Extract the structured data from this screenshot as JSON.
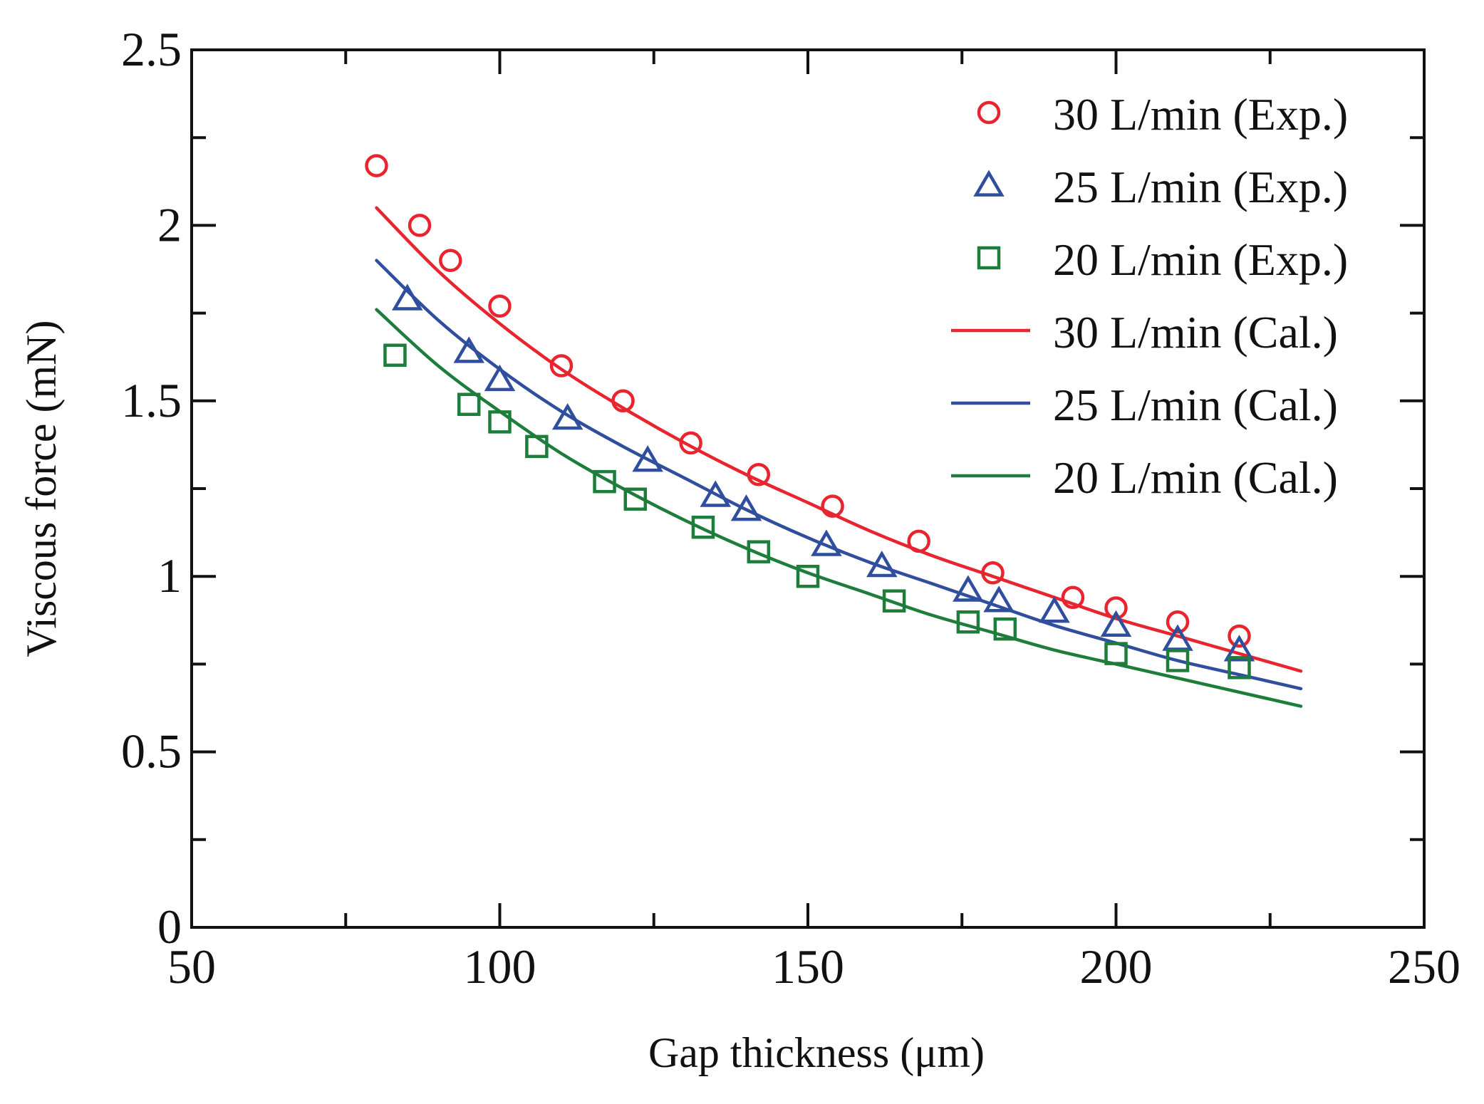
{
  "colors": {
    "red": "#e8252f",
    "blue": "#2f4e9e",
    "green": "#1e7d3a",
    "axis": "#111111",
    "background": "#ffffff"
  },
  "chart_data": {
    "type": "scatter",
    "title": "",
    "xlabel": "Gap thickness (μm)",
    "ylabel": "Viscous force (mN)",
    "xlim": [
      50,
      250
    ],
    "ylim": [
      0,
      2.5
    ],
    "x_ticks": [
      50,
      100,
      150,
      200,
      250
    ],
    "x_tick_labels": [
      "50",
      "100",
      "150",
      "200",
      "250"
    ],
    "x_minor_step": 25,
    "y_ticks": [
      0,
      0.5,
      1,
      1.5,
      2,
      2.5
    ],
    "y_tick_labels": [
      "0",
      "0.5",
      "1",
      "1.5",
      "2",
      "2.5"
    ],
    "y_minor_step": 0.25,
    "grid": false,
    "legend_position": "top-right",
    "series": [
      {
        "name": "30 L/min (Exp.)",
        "kind": "marker",
        "marker": "circle",
        "color": "#e8252f",
        "x": [
          80,
          87,
          92,
          100,
          110,
          120,
          131,
          142,
          154,
          168,
          180,
          193,
          200,
          210,
          220
        ],
        "y": [
          2.17,
          2.0,
          1.9,
          1.77,
          1.6,
          1.5,
          1.38,
          1.29,
          1.2,
          1.1,
          1.01,
          0.94,
          0.91,
          0.87,
          0.83
        ]
      },
      {
        "name": "25 L/min (Exp.)",
        "kind": "marker",
        "marker": "triangle",
        "color": "#2f4e9e",
        "x": [
          85,
          95,
          100,
          111,
          124,
          135,
          140,
          153,
          162,
          176,
          181,
          190,
          200,
          210,
          220
        ],
        "y": [
          1.79,
          1.64,
          1.56,
          1.45,
          1.33,
          1.23,
          1.19,
          1.09,
          1.03,
          0.96,
          0.93,
          0.9,
          0.86,
          0.82,
          0.79
        ]
      },
      {
        "name": "20 L/min (Exp.)",
        "kind": "marker",
        "marker": "square",
        "color": "#1e7d3a",
        "x": [
          83,
          95,
          100,
          106,
          117,
          122,
          133,
          142,
          150,
          164,
          176,
          182,
          200,
          210,
          220
        ],
        "y": [
          1.63,
          1.49,
          1.44,
          1.37,
          1.27,
          1.22,
          1.14,
          1.07,
          1.0,
          0.93,
          0.87,
          0.85,
          0.78,
          0.76,
          0.74
        ]
      },
      {
        "name": "30 L/min (Cal.)",
        "kind": "line",
        "color": "#e8252f",
        "x": [
          80,
          90,
          100,
          110,
          120,
          130,
          140,
          150,
          160,
          170,
          180,
          190,
          200,
          210,
          220,
          230
        ],
        "y": [
          2.05,
          1.87,
          1.72,
          1.59,
          1.48,
          1.38,
          1.29,
          1.21,
          1.13,
          1.06,
          1.0,
          0.94,
          0.88,
          0.83,
          0.78,
          0.73
        ]
      },
      {
        "name": "25 L/min (Cal.)",
        "kind": "line",
        "color": "#2f4e9e",
        "x": [
          80,
          90,
          100,
          110,
          120,
          130,
          140,
          150,
          160,
          170,
          180,
          190,
          200,
          210,
          220,
          230
        ],
        "y": [
          1.9,
          1.73,
          1.59,
          1.47,
          1.37,
          1.28,
          1.19,
          1.11,
          1.04,
          0.98,
          0.92,
          0.86,
          0.81,
          0.76,
          0.72,
          0.68
        ]
      },
      {
        "name": "20 L/min (Cal.)",
        "kind": "line",
        "color": "#1e7d3a",
        "x": [
          80,
          90,
          100,
          110,
          120,
          130,
          140,
          150,
          160,
          170,
          180,
          190,
          200,
          210,
          220,
          230
        ],
        "y": [
          1.76,
          1.6,
          1.47,
          1.35,
          1.25,
          1.16,
          1.08,
          1.01,
          0.95,
          0.89,
          0.84,
          0.79,
          0.75,
          0.71,
          0.67,
          0.63
        ]
      }
    ]
  }
}
